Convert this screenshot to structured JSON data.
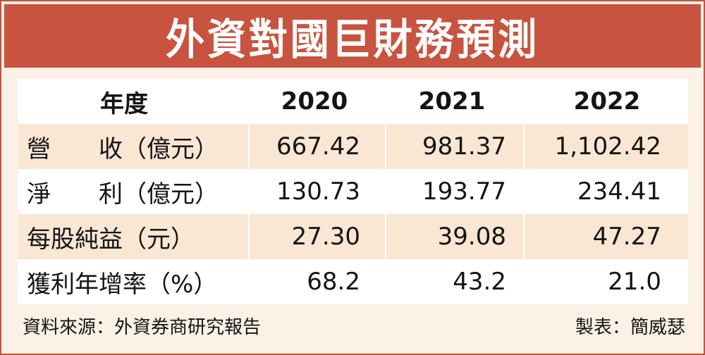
{
  "title": "外資對國巨財務預測",
  "table": {
    "headers": [
      "年度",
      "2020",
      "2021",
      "2022"
    ],
    "rows": [
      {
        "label": "營　　收（億元）",
        "values": [
          "667.42",
          "981.37",
          "1,102.42"
        ]
      },
      {
        "label": "淨　　利（億元）",
        "values": [
          "130.73",
          "193.77",
          "234.41"
        ]
      },
      {
        "label": "每股純益（元）",
        "values": [
          "27.30",
          "39.08",
          "47.27"
        ]
      },
      {
        "label": "獲利年增率（%）",
        "values": [
          "68.2",
          "43.2",
          "21.0"
        ]
      }
    ]
  },
  "footer": {
    "source": "資料來源：外資券商研究報告",
    "author": "製表：簡威瑟"
  },
  "colors": {
    "title_bg": "#c8533f",
    "frame_bg": "#fbf1e6",
    "stripe": "#f9e6d3"
  }
}
